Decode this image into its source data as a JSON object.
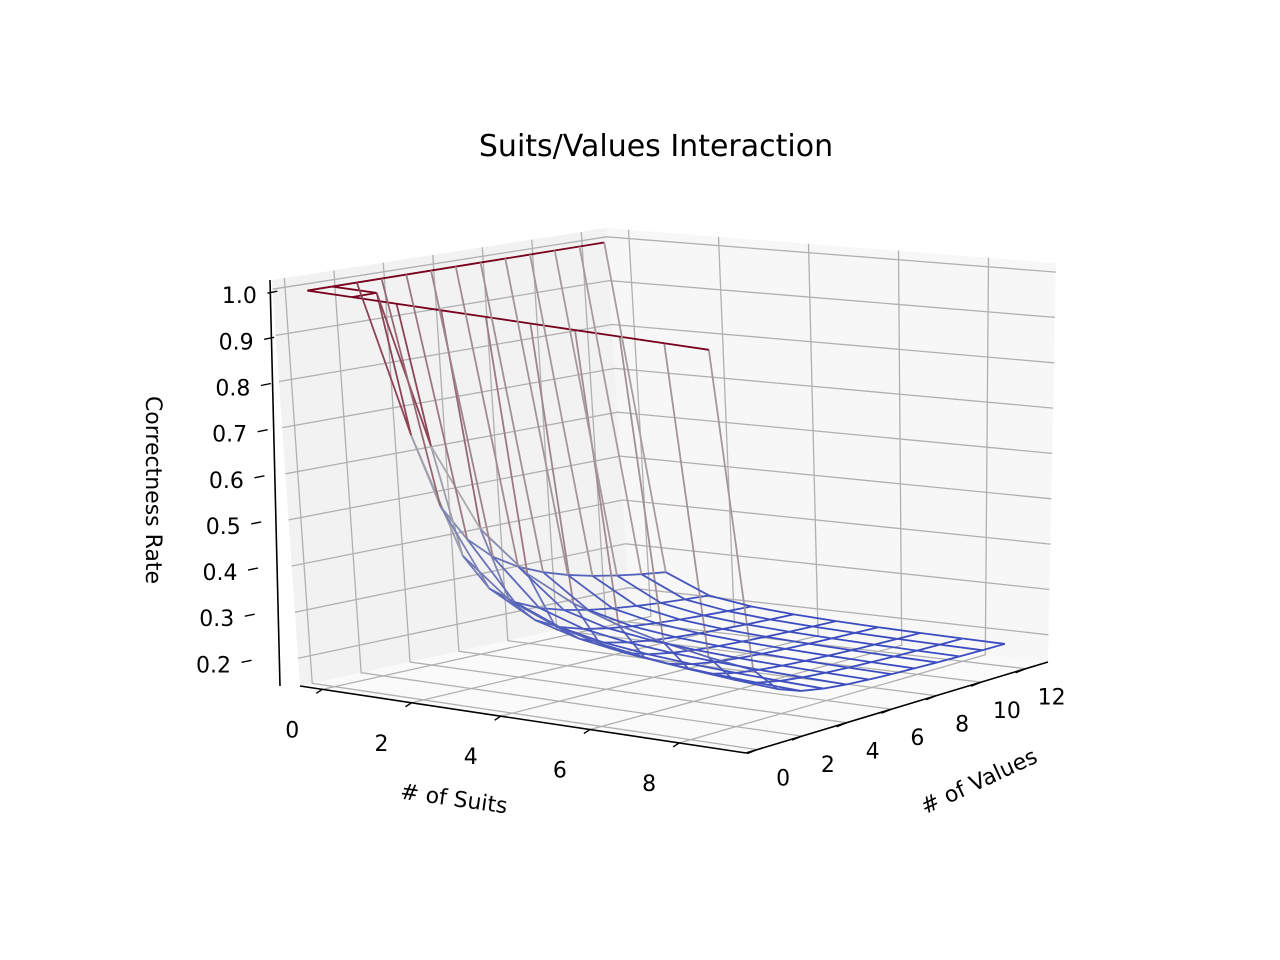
{
  "chart_data": {
    "type": "surface3d",
    "title": "Suits/Values Interaction",
    "xlabel": "# of Suits",
    "ylabel": "# of Values",
    "zlabel": "Correctness Rate",
    "xlim": [
      -0.5,
      9.5
    ],
    "ylim": [
      -0.5,
      13
    ],
    "zlim": [
      0.14,
      1.02
    ],
    "xticks": [
      0,
      2,
      4,
      6,
      8
    ],
    "yticks": [
      0,
      2,
      4,
      6,
      8,
      10,
      12
    ],
    "zticks": [
      0.2,
      0.3,
      0.4,
      0.5,
      0.6,
      0.7,
      0.8,
      0.9,
      1.0
    ],
    "grid": true,
    "colormap": "coolwarm",
    "suits": [
      0,
      1,
      2,
      3,
      4,
      5,
      6,
      7,
      8,
      9
    ],
    "values": [
      0,
      1,
      2,
      3,
      4,
      5,
      6,
      7,
      8,
      9,
      10,
      11,
      12
    ],
    "surface": "z = min(1, 1/(suits*values) + 0.18)"
  }
}
